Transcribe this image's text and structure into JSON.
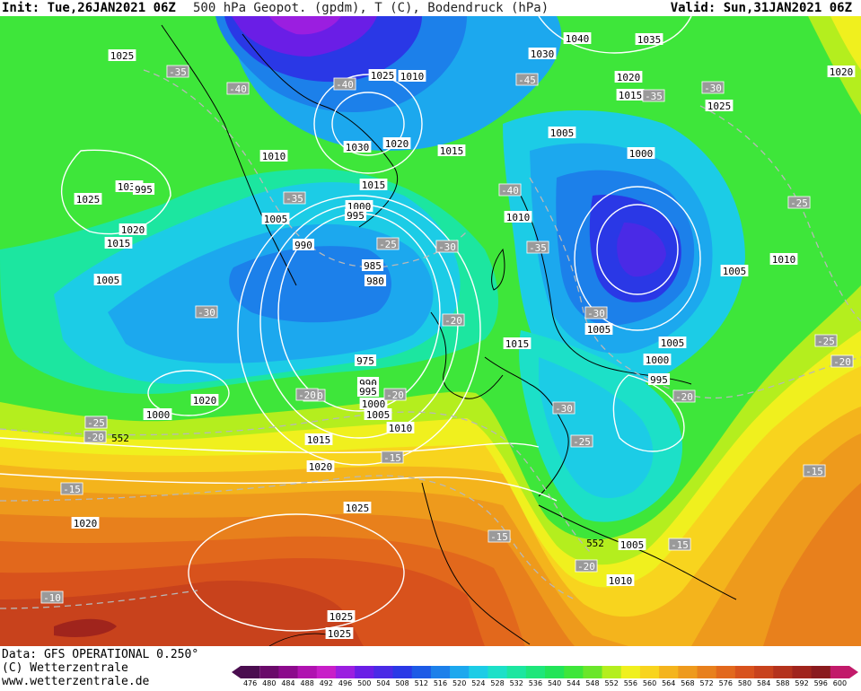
{
  "header": {
    "init_text": "Init: Tue,26JAN2021 06Z",
    "description": "500 hPa Geopot. (gpdm), T (C), Bodendruck (hPa)",
    "valid_text": "Valid: Sun,31JAN2021 06Z"
  },
  "footer": {
    "data_source": "Data: GFS OPERATIONAL 0.250°",
    "copyright": "(C) Wetterzentrale",
    "website": "www.wetterzentrale.de"
  },
  "legend": {
    "ticks": [
      "476",
      "480",
      "484",
      "488",
      "492",
      "496",
      "500",
      "504",
      "508",
      "512",
      "516",
      "520",
      "524",
      "528",
      "532",
      "536",
      "540",
      "544",
      "548",
      "552",
      "556",
      "560",
      "564",
      "568",
      "572",
      "576",
      "580",
      "584",
      "588",
      "592",
      "596",
      "600"
    ],
    "colors": [
      "#4a0d4f",
      "#6a0a6a",
      "#8c0a8c",
      "#b012b0",
      "#c81ec8",
      "#9b1ee0",
      "#6a1ee6",
      "#4a2ae6",
      "#2a38e6",
      "#1c5ae6",
      "#1c80ea",
      "#1ca8ee",
      "#1ccce6",
      "#1ce0c8",
      "#1ce6a0",
      "#1ee67a",
      "#22e458",
      "#3ee63a",
      "#6ae62a",
      "#b4ee1e",
      "#f0f01e",
      "#f8d41e",
      "#f4b41c",
      "#ee9a1c",
      "#e8801c",
      "#e2681c",
      "#d8521c",
      "#c8421c",
      "#b4321c",
      "#a0241c",
      "#8a1a1e",
      "#c21a6a"
    ]
  },
  "map": {
    "pressure_labels": [
      {
        "text": "1025"
      },
      {
        "text": "1030"
      },
      {
        "text": "1025"
      },
      {
        "text": "1020"
      },
      {
        "text": "1015"
      },
      {
        "text": "1005"
      },
      {
        "text": "1010"
      },
      {
        "text": "1005"
      },
      {
        "text": "1000"
      },
      {
        "text": "995"
      },
      {
        "text": "990"
      },
      {
        "text": "985"
      },
      {
        "text": "980"
      },
      {
        "text": "975"
      },
      {
        "text": "990"
      },
      {
        "text": "995"
      },
      {
        "text": "1000"
      },
      {
        "text": "1005"
      },
      {
        "text": "1010"
      },
      {
        "text": "1015"
      },
      {
        "text": "1020"
      },
      {
        "text": "1025"
      },
      {
        "text": "1020"
      },
      {
        "text": "1025"
      },
      {
        "text": "1030"
      },
      {
        "text": "1020"
      },
      {
        "text": "1015"
      },
      {
        "text": "1025"
      },
      {
        "text": "1040"
      },
      {
        "text": "1035"
      },
      {
        "text": "1030"
      },
      {
        "text": "1020"
      },
      {
        "text": "1015"
      },
      {
        "text": "1025"
      },
      {
        "text": "1005"
      },
      {
        "text": "1000"
      },
      {
        "text": "1010"
      },
      {
        "text": "1005"
      },
      {
        "text": "1010"
      },
      {
        "text": "1015"
      },
      {
        "text": "1005"
      },
      {
        "text": "1005"
      },
      {
        "text": "1000"
      },
      {
        "text": "995"
      },
      {
        "text": "1010"
      },
      {
        "text": "1015"
      },
      {
        "text": "1020"
      },
      {
        "text": "1025"
      },
      {
        "text": "1005"
      },
      {
        "text": "1010"
      },
      {
        "text": "1025"
      },
      {
        "text": "1020"
      },
      {
        "text": "995"
      },
      {
        "text": "1000"
      },
      {
        "text": "1015"
      },
      {
        "text": "1020"
      }
    ],
    "temperature_labels": [
      {
        "text": "-35"
      },
      {
        "text": "-40"
      },
      {
        "text": "-40"
      },
      {
        "text": "-45"
      },
      {
        "text": "-30"
      },
      {
        "text": "-35"
      },
      {
        "text": "-35"
      },
      {
        "text": "-25"
      },
      {
        "text": "-30"
      },
      {
        "text": "-40"
      },
      {
        "text": "-35"
      },
      {
        "text": "-30"
      },
      {
        "text": "-20"
      },
      {
        "text": "-20"
      },
      {
        "text": "-20"
      },
      {
        "text": "-25"
      },
      {
        "text": "-20"
      },
      {
        "text": "-15"
      },
      {
        "text": "-15"
      },
      {
        "text": "-10"
      },
      {
        "text": "-15"
      },
      {
        "text": "-20"
      },
      {
        "text": "-15"
      },
      {
        "text": "-30"
      },
      {
        "text": "-25"
      },
      {
        "text": "-25"
      },
      {
        "text": "-25"
      },
      {
        "text": "-20"
      },
      {
        "text": "-20"
      },
      {
        "text": "-15"
      },
      {
        "text": "-30"
      },
      {
        "text": "-20"
      },
      {
        "text": "-25"
      }
    ],
    "geopotential_labels": [
      {
        "text": "552"
      },
      {
        "text": "552"
      }
    ]
  }
}
